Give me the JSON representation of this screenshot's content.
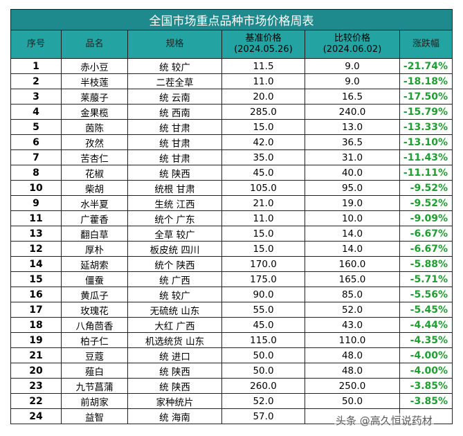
{
  "table": {
    "title": "全国市场重点品种市场价格周表",
    "headers": {
      "index": "序号",
      "name": "品名",
      "spec": "规格",
      "base_price": "基准价格",
      "base_date": "(2024.05.26)",
      "compare_price": "比较价格",
      "compare_date": "(2024.06.02)",
      "change": "涨跌幅"
    },
    "rows": [
      {
        "index": "1",
        "name": "赤小豆",
        "spec": "统 较广",
        "base": "11.5",
        "compare": "9.0",
        "change": "-21.74%"
      },
      {
        "index": "2",
        "name": "半枝莲",
        "spec": "二茬全草",
        "base": "11.0",
        "compare": "9.0",
        "change": "-18.18%"
      },
      {
        "index": "3",
        "name": "莱菔子",
        "spec": "统 云南",
        "base": "20.0",
        "compare": "16.5",
        "change": "-17.50%"
      },
      {
        "index": "4",
        "name": "金果榄",
        "spec": "统 西南",
        "base": "285.0",
        "compare": "240.0",
        "change": "-15.79%"
      },
      {
        "index": "5",
        "name": "茵陈",
        "spec": "统 甘肃",
        "base": "15.0",
        "compare": "13.0",
        "change": "-13.33%"
      },
      {
        "index": "6",
        "name": "孜然",
        "spec": "统 甘肃",
        "base": "42.0",
        "compare": "36.5",
        "change": "-13.10%"
      },
      {
        "index": "7",
        "name": "苦杏仁",
        "spec": "统 甘肃",
        "base": "35.0",
        "compare": "31.0",
        "change": "-11.43%"
      },
      {
        "index": "8",
        "name": "花椒",
        "spec": "统 陕西",
        "base": "45.0",
        "compare": "40.0",
        "change": "-11.11%"
      },
      {
        "index": "10",
        "name": "柴胡",
        "spec": "统根 甘肃",
        "base": "105.0",
        "compare": "95.0",
        "change": "-9.52%"
      },
      {
        "index": "9",
        "name": "水半夏",
        "spec": "生统 江西",
        "base": "21.0",
        "compare": "19.0",
        "change": "-9.52%"
      },
      {
        "index": "11",
        "name": "广藿香",
        "spec": "统个 广东",
        "base": "11.0",
        "compare": "10.0",
        "change": "-9.09%"
      },
      {
        "index": "13",
        "name": "翻白草",
        "spec": "全草 较广",
        "base": "15.0",
        "compare": "14.0",
        "change": "-6.67%"
      },
      {
        "index": "12",
        "name": "厚朴",
        "spec": "板皮统 四川",
        "base": "15.0",
        "compare": "14.0",
        "change": "-6.67%"
      },
      {
        "index": "14",
        "name": "延胡索",
        "spec": "统个 陕西",
        "base": "170.0",
        "compare": "160.0",
        "change": "-5.88%"
      },
      {
        "index": "15",
        "name": "僵蚕",
        "spec": "统 广西",
        "base": "175.0",
        "compare": "165.0",
        "change": "-5.71%"
      },
      {
        "index": "16",
        "name": "黄瓜子",
        "spec": "统 较广",
        "base": "90.0",
        "compare": "85.0",
        "change": "-5.56%"
      },
      {
        "index": "17",
        "name": "玫瑰花",
        "spec": "无硫统 山东",
        "base": "55.0",
        "compare": "52.0",
        "change": "-5.45%"
      },
      {
        "index": "18",
        "name": "八角茴香",
        "spec": "大红 广西",
        "base": "45.0",
        "compare": "43.0",
        "change": "-4.44%"
      },
      {
        "index": "19",
        "name": "柏子仁",
        "spec": "机选统货 山东",
        "base": "115.0",
        "compare": "110.0",
        "change": "-4.35%"
      },
      {
        "index": "21",
        "name": "豆蔻",
        "spec": "统 进口",
        "base": "50.0",
        "compare": "48.0",
        "change": "-4.00%"
      },
      {
        "index": "20",
        "name": "薤白",
        "spec": "统 陕西",
        "base": "50.0",
        "compare": "48.0",
        "change": "-4.00%"
      },
      {
        "index": "23",
        "name": "九节菖蒲",
        "spec": "统 陕西",
        "base": "260.0",
        "compare": "250.0",
        "change": "-3.85%"
      },
      {
        "index": "22",
        "name": "前胡家",
        "spec": "家种统片",
        "base": "52.0",
        "compare": "50.0",
        "change": "-3.85%"
      },
      {
        "index": "24",
        "name": "益智",
        "spec": "统 海南",
        "base": "57.0",
        "compare": "",
        "change": ""
      }
    ]
  },
  "watermark": "头条 @高久恒说药材",
  "colors": {
    "title_bg": "#1f8a8d",
    "header_bg": "#23a3a2",
    "change_text": "#1f9e32"
  }
}
